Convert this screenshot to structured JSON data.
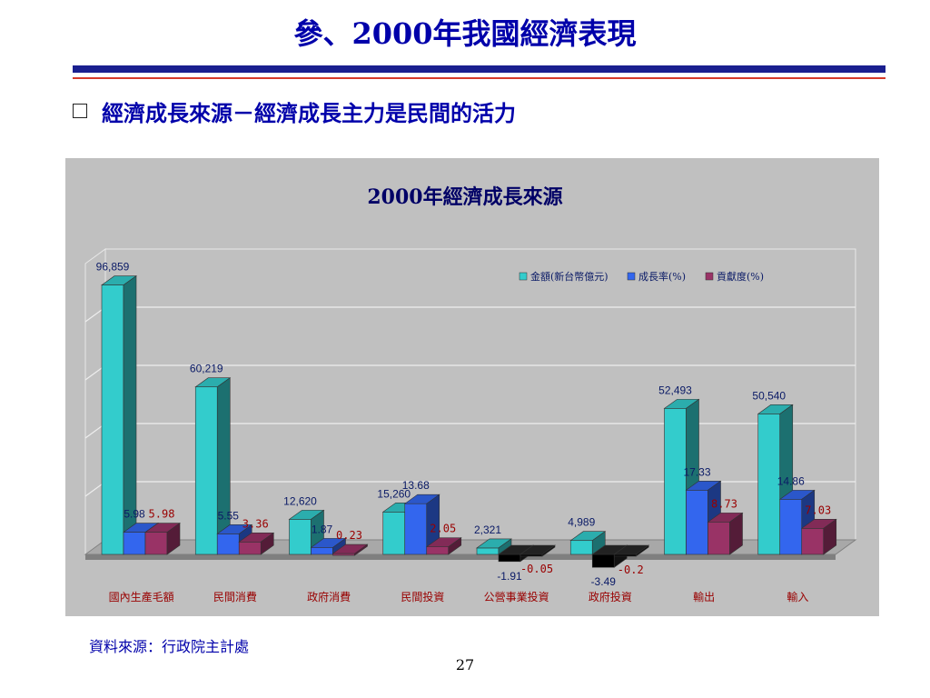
{
  "slide": {
    "title": "參、2000年我國經濟表現",
    "subtitle": "經濟成長來源－經濟成長主力是民間的活力",
    "source": "資料來源：行政院主計處",
    "page_number": "27"
  },
  "colors": {
    "title_text": "#0000aa",
    "rule_navy": "#1a1f8f",
    "rule_red": "#d63a2a",
    "chart_bg": "#c0c0c0",
    "series_amount": "#33cccc",
    "series_growth": "#3366ee",
    "series_contribution": "#993366",
    "negative_bar": "#000000",
    "category_label": "#990000"
  },
  "chart_data": {
    "type": "bar",
    "title": "2000年經濟成長來源",
    "legend_position": "top-right",
    "grid": true,
    "categories": [
      "國內生產毛額",
      "民間消費",
      "政府消費",
      "民間投資",
      "公營事業投資",
      "政府投資",
      "輸出",
      "輸入"
    ],
    "series": [
      {
        "name": "金額(新台幣億元)",
        "values": [
          96859,
          60219,
          12620,
          15260,
          2321,
          4989,
          52493,
          50540
        ],
        "labels": [
          "96,859",
          "60,219",
          "12,620",
          "15,260",
          "2,321",
          "4,989",
          "52,493",
          "50,540"
        ]
      },
      {
        "name": "成長率(%)",
        "values": [
          5.98,
          5.55,
          1.87,
          13.68,
          -1.91,
          -3.49,
          17.33,
          14.86
        ],
        "labels": [
          "5.98",
          "5.55",
          "1.87",
          "13.68",
          "-1.91",
          "-3.49",
          "17.33",
          "14.86"
        ]
      },
      {
        "name": "貢獻度(%)",
        "values": [
          5.98,
          3.36,
          0.23,
          2.05,
          -0.05,
          -0.2,
          8.73,
          7.03
        ],
        "labels": [
          "5.98",
          "3.36",
          "0.23",
          "2.05",
          "-0.05",
          "-0.2",
          "8.73",
          "7.03"
        ]
      }
    ]
  }
}
